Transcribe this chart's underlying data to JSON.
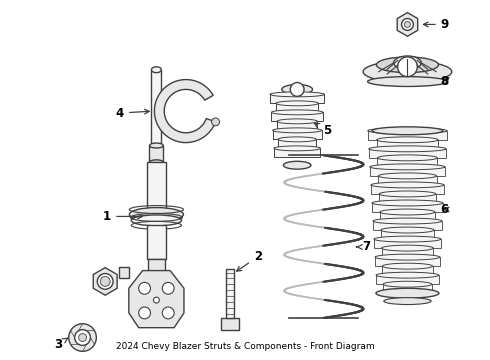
{
  "title": "2024 Chevy Blazer Struts & Components - Front Diagram",
  "background_color": "#ffffff",
  "line_color": "#404040",
  "label_color": "#000000",
  "fig_width": 4.9,
  "fig_height": 3.6,
  "dpi": 100
}
